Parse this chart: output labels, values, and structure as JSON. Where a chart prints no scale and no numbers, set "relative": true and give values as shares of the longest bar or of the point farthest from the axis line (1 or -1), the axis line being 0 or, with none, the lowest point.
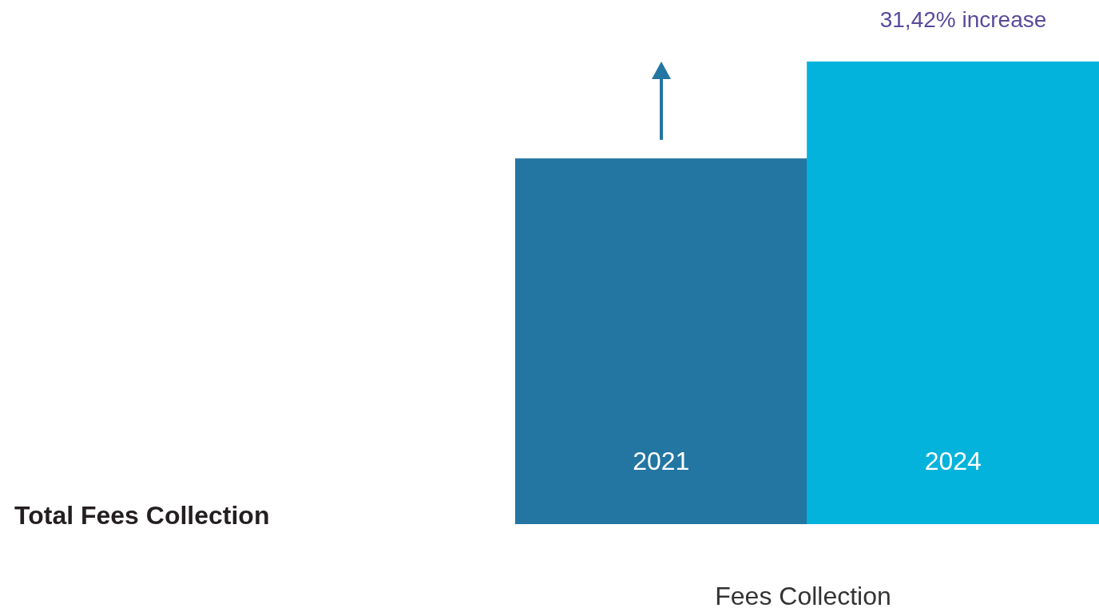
{
  "chart_data": {
    "type": "bar",
    "title": "Total Fees Collection",
    "xlabel": "Fees Collection",
    "categories": [
      "2021",
      "2024"
    ],
    "values": [
      0.79,
      1
    ],
    "colors": [
      "#2375a2",
      "#03b3dc"
    ],
    "relative": true,
    "annotations": [
      "31,42% increase"
    ]
  }
}
